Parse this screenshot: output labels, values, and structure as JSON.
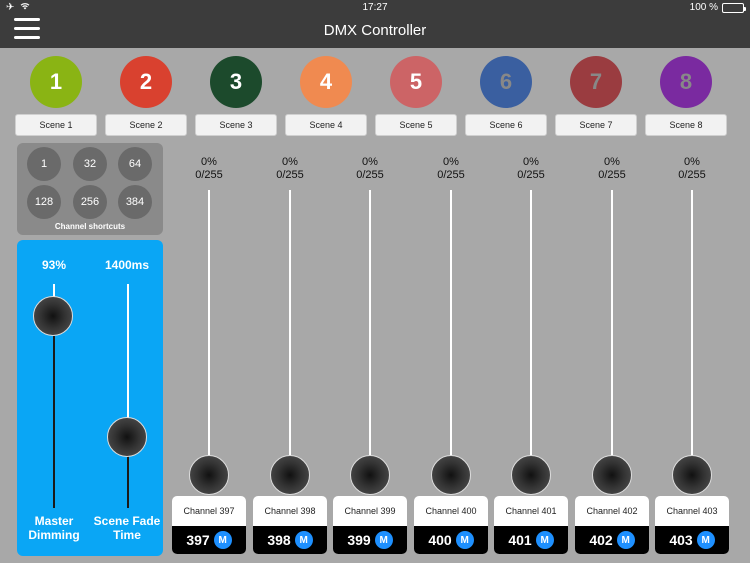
{
  "status": {
    "time": "17:27",
    "battery": "100 %"
  },
  "header": {
    "title": "DMX Controller"
  },
  "scenes": [
    {
      "number": "1",
      "label": "Scene 1",
      "color": "#8ab414"
    },
    {
      "number": "2",
      "label": "Scene 2",
      "color": "#d9412f"
    },
    {
      "number": "3",
      "label": "Scene 3",
      "color": "#1c4a2c"
    },
    {
      "number": "4",
      "label": "Scene 4",
      "color": "#f08a50"
    },
    {
      "number": "5",
      "label": "Scene 5",
      "color": "#cc6466"
    },
    {
      "number": "6",
      "label": "Scene 6",
      "color": "#3a5fa0"
    },
    {
      "number": "7",
      "label": "Scene 7",
      "color": "#9a3c40"
    },
    {
      "number": "8",
      "label": "Scene 8",
      "color": "#7a2aa0"
    }
  ],
  "shortcuts": {
    "values": [
      "1",
      "32",
      "64",
      "128",
      "256",
      "384"
    ],
    "label": "Channel shortcuts"
  },
  "master": {
    "dimming_value": "93%",
    "dimming_label": "Master Dimming",
    "fade_value": "1400ms",
    "fade_label": "Scene Fade Time"
  },
  "channels": [
    {
      "percent": "0%",
      "raw": "0/255",
      "name": "Channel 397",
      "number": "397"
    },
    {
      "percent": "0%",
      "raw": "0/255",
      "name": "Channel 398",
      "number": "398"
    },
    {
      "percent": "0%",
      "raw": "0/255",
      "name": "Channel 399",
      "number": "399"
    },
    {
      "percent": "0%",
      "raw": "0/255",
      "name": "Channel 400",
      "number": "400"
    },
    {
      "percent": "0%",
      "raw": "0/255",
      "name": "Channel 401",
      "number": "401"
    },
    {
      "percent": "0%",
      "raw": "0/255",
      "name": "Channel 402",
      "number": "402"
    },
    {
      "percent": "0%",
      "raw": "0/255",
      "name": "Channel 403",
      "number": "403"
    }
  ],
  "badge_label": "M"
}
